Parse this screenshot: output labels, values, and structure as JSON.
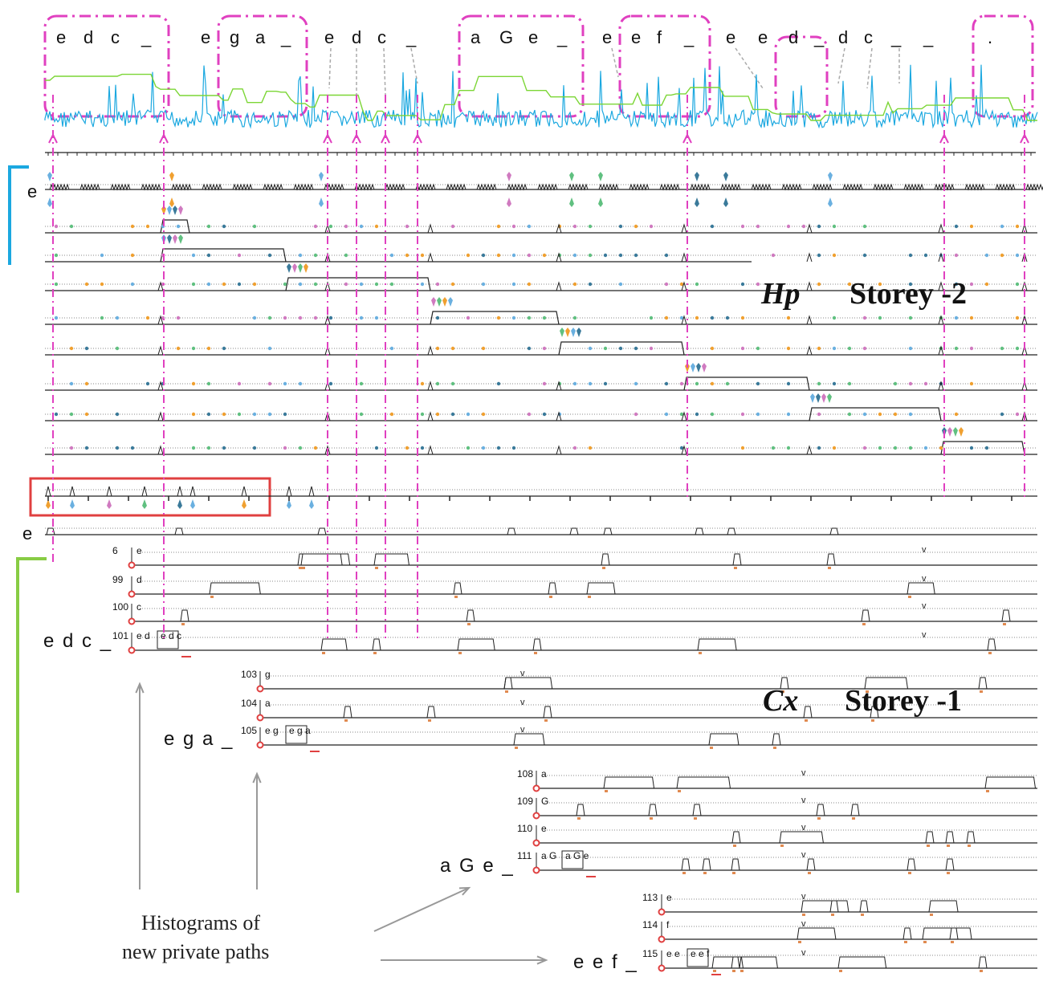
{
  "sequence_top": {
    "boxed_groups": [
      [
        "e",
        "d",
        "c",
        "_"
      ],
      [
        "g",
        "a",
        "_"
      ],
      [
        "a",
        "G",
        "e",
        "_"
      ],
      [
        "e",
        "f",
        "_"
      ],
      [
        "d",
        "_"
      ],
      [
        "."
      ]
    ],
    "free_letters": [
      "e",
      "e",
      "d",
      "c",
      "_",
      "e",
      "e",
      "e",
      "d",
      "c",
      "_",
      "_"
    ]
  },
  "hp_section": {
    "row_label": "e",
    "title_italic": "Hp",
    "title": "Storey -2"
  },
  "cx_section": {
    "row_label": "e",
    "title_italic": "Cx",
    "title": "Storey -1",
    "rows": [
      {
        "num": "6",
        "label": "e"
      },
      {
        "num": "99",
        "label": "d"
      },
      {
        "num": "100",
        "label": "c"
      },
      {
        "num": "101",
        "label": "e d",
        "tail": "e d c"
      },
      {
        "num": "103",
        "label": "g"
      },
      {
        "num": "104",
        "label": "a"
      },
      {
        "num": "105",
        "label": "e g",
        "tail": "e g a"
      },
      {
        "num": "108",
        "label": "a"
      },
      {
        "num": "109",
        "label": "G"
      },
      {
        "num": "110",
        "label": "e"
      },
      {
        "num": "111",
        "label": "a G",
        "tail": "a G e"
      },
      {
        "num": "113",
        "label": "e"
      },
      {
        "num": "114",
        "label": "f"
      },
      {
        "num": "115",
        "label": "e e",
        "tail": "e e f"
      }
    ],
    "sequence_names": [
      "e d c _",
      "e g a _",
      "a G e _",
      "e e f _"
    ],
    "v_mark": "v"
  },
  "annotation": {
    "line1": "Histograms  of",
    "line2": "new private paths"
  },
  "colors": {
    "magenta": "#e040c0",
    "cyan": "#1ba8e0",
    "green": "#7cd636",
    "red": "#e04040",
    "blue_bracket": "#1ba8e0",
    "green_bracket": "#88cc44",
    "gray": "#999999"
  }
}
